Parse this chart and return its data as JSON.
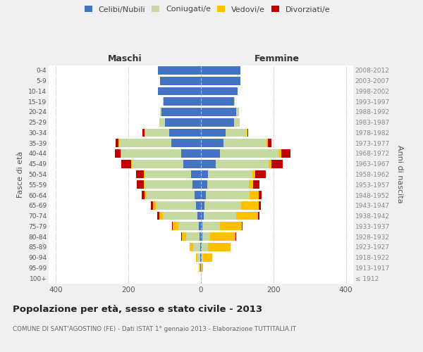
{
  "age_groups": [
    "100+",
    "95-99",
    "90-94",
    "85-89",
    "80-84",
    "75-79",
    "70-74",
    "65-69",
    "60-64",
    "55-59",
    "50-54",
    "45-49",
    "40-44",
    "35-39",
    "30-34",
    "25-29",
    "20-24",
    "15-19",
    "10-14",
    "5-9",
    "0-4"
  ],
  "birth_years": [
    "≤ 1912",
    "1913-1917",
    "1918-1922",
    "1923-1927",
    "1928-1932",
    "1933-1937",
    "1938-1942",
    "1943-1947",
    "1948-1952",
    "1953-1957",
    "1958-1962",
    "1963-1967",
    "1968-1972",
    "1973-1977",
    "1978-1982",
    "1983-1987",
    "1988-1992",
    "1993-1997",
    "1998-2002",
    "2003-2007",
    "2008-2012"
  ],
  "male_celibi": [
    0,
    1,
    1,
    2,
    4,
    5,
    10,
    13,
    18,
    23,
    28,
    48,
    55,
    82,
    88,
    100,
    108,
    103,
    118,
    113,
    118
  ],
  "male_coniugati": [
    0,
    2,
    8,
    20,
    36,
    58,
    95,
    112,
    132,
    132,
    127,
    142,
    165,
    143,
    68,
    14,
    5,
    2,
    0,
    0,
    0
  ],
  "male_vedovi": [
    0,
    2,
    5,
    10,
    12,
    14,
    10,
    8,
    5,
    3,
    2,
    2,
    2,
    2,
    0,
    0,
    0,
    0,
    0,
    0,
    0
  ],
  "male_divorziati": [
    0,
    0,
    0,
    0,
    2,
    3,
    5,
    5,
    8,
    18,
    22,
    28,
    15,
    8,
    5,
    0,
    0,
    0,
    0,
    0,
    0
  ],
  "female_nubili": [
    0,
    0,
    1,
    2,
    3,
    4,
    8,
    10,
    14,
    17,
    20,
    40,
    52,
    62,
    68,
    92,
    97,
    92,
    102,
    108,
    108
  ],
  "female_coniugate": [
    0,
    2,
    5,
    18,
    22,
    48,
    90,
    100,
    120,
    116,
    122,
    147,
    162,
    118,
    58,
    14,
    8,
    2,
    0,
    0,
    0
  ],
  "female_vedove": [
    0,
    3,
    26,
    62,
    70,
    60,
    60,
    50,
    25,
    10,
    8,
    8,
    8,
    4,
    2,
    0,
    0,
    0,
    0,
    0,
    0
  ],
  "female_divorziate": [
    0,
    0,
    0,
    0,
    2,
    3,
    3,
    5,
    8,
    18,
    28,
    30,
    25,
    10,
    2,
    0,
    0,
    0,
    0,
    0,
    0
  ],
  "colors": {
    "celibi_nubili": "#4472c4",
    "coniugati": "#c5d9a0",
    "vedovi": "#ffc000",
    "divorziati": "#c00000"
  },
  "xlim": 420,
  "title": "Popolazione per età, sesso e stato civile - 2013",
  "subtitle": "COMUNE DI SANT'AGOSTINO (FE) - Dati ISTAT 1° gennaio 2013 - Elaborazione TUTTITALIA.IT",
  "ylabel_left": "Fasce di età",
  "ylabel_right": "Anni di nascita",
  "xlabel_left": "Maschi",
  "xlabel_right": "Femmine",
  "bg_color": "#f0f0f0",
  "plot_bg": "#ffffff",
  "grid_color": "#cccccc"
}
